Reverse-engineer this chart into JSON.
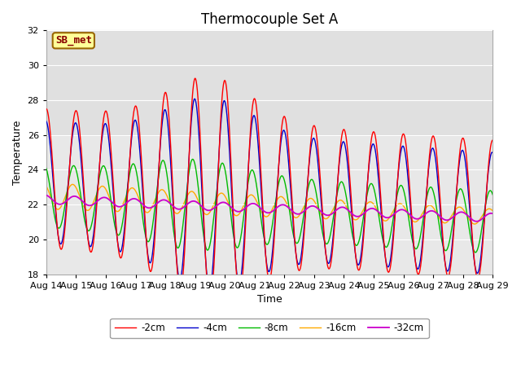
{
  "title": "Thermocouple Set A",
  "xlabel": "Time",
  "ylabel": "Temperature",
  "xlim": [
    0,
    15
  ],
  "ylim": [
    18,
    32
  ],
  "yticks": [
    18,
    20,
    22,
    24,
    26,
    28,
    30,
    32
  ],
  "xtick_labels": [
    "Aug 14",
    "Aug 15",
    "Aug 16",
    "Aug 17",
    "Aug 18",
    "Aug 19",
    "Aug 20",
    "Aug 21",
    "Aug 22",
    "Aug 23",
    "Aug 24",
    "Aug 25",
    "Aug 26",
    "Aug 27",
    "Aug 28",
    "Aug 29"
  ],
  "series_colors": [
    "#ff0000",
    "#0000cc",
    "#00bb00",
    "#ffaa00",
    "#cc00cc"
  ],
  "series_labels": [
    "-2cm",
    "-4cm",
    "-8cm",
    "-16cm",
    "-32cm"
  ],
  "annotation_text": "SB_met",
  "annotation_bg": "#ffff99",
  "annotation_border": "#996600",
  "annotation_text_color": "#880000",
  "bg_band_color": "#e0e0e0",
  "bg_band_ymin": 26,
  "bg_band_ymax": 32,
  "axes_bg_color": "#e8e8e8",
  "title_fontsize": 12,
  "axis_fontsize": 9,
  "tick_fontsize": 8
}
